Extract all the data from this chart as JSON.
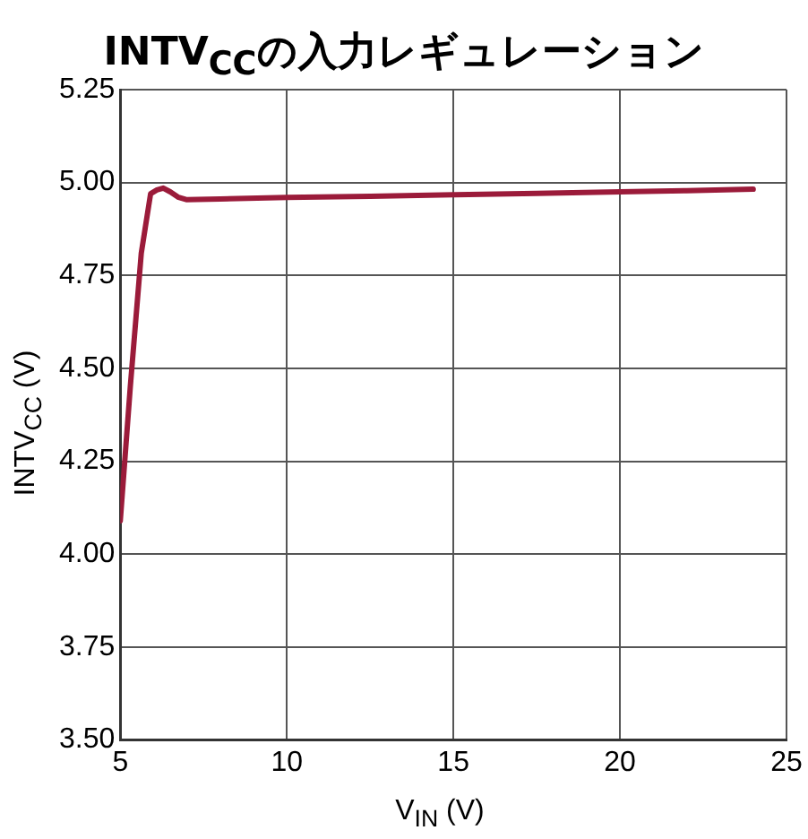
{
  "chart_data": {
    "type": "line",
    "title": "INTV$_{CC}$の入力レギュレーション",
    "xlabel": "V$_{IN}$ (V)",
    "ylabel": "INTV$_{CC}$ (V)",
    "x": [
      5,
      5.3,
      5.63,
      5.91,
      6.1,
      6.29,
      6.5,
      6.75,
      6.98,
      8,
      10,
      12.5,
      15,
      17.5,
      20,
      22,
      24
    ],
    "series": [
      {
        "color": "#9b1b3a",
        "values": [
          4.09,
          4.45,
          4.81,
          4.97,
          4.98,
          4.985,
          4.975,
          4.96,
          4.954,
          4.956,
          4.96,
          4.963,
          4.967,
          4.971,
          4.975,
          4.978,
          4.982
        ]
      }
    ],
    "xlim": [
      5,
      25
    ],
    "xticks": [
      5,
      10,
      15,
      20,
      25
    ],
    "ylim": [
      3.5,
      5.25
    ],
    "yticks": [
      {
        "value": 3.5,
        "label": "3.50"
      },
      {
        "value": 3.75,
        "label": "3.75"
      },
      {
        "value": 4,
        "label": "4.00"
      },
      {
        "value": 4.25,
        "label": "4.25"
      },
      {
        "value": 4.5,
        "label": "4.50"
      },
      {
        "value": 4.75,
        "label": "4.75"
      },
      {
        "value": 5,
        "label": "5.00"
      },
      {
        "value": 5.25,
        "label": "5.25"
      }
    ],
    "grid": true,
    "legend": false,
    "marker": "none",
    "line_style": "solid"
  }
}
